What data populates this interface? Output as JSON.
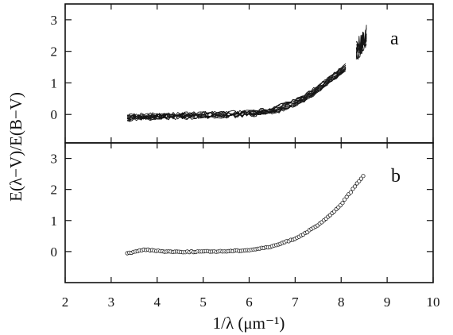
{
  "chart_data": {
    "type": "line",
    "xlabel": "1/λ (μm⁻¹)",
    "ylabel": "E(λ−V)/E(B−V)",
    "xlim": [
      2,
      10
    ],
    "x_ticks": [
      "2",
      "3",
      "4",
      "5",
      "6",
      "7",
      "8",
      "9",
      "10"
    ],
    "grid": false,
    "panels": [
      {
        "label": "a",
        "ylim": [
          -0.9,
          3.5
        ],
        "y_ticks": [
          "0",
          "1",
          "2",
          "3"
        ],
        "curves": 12,
        "x": [
          3.35,
          3.5,
          4.0,
          4.5,
          5.0,
          5.5,
          6.0,
          6.5,
          7.0,
          7.25,
          7.5,
          7.75,
          8.0,
          8.1
        ],
        "y": [
          -0.12,
          -0.08,
          -0.05,
          -0.03,
          -0.02,
          0.0,
          0.03,
          0.12,
          0.38,
          0.58,
          0.82,
          1.1,
          1.38,
          1.5
        ],
        "far_uv_x": [
          8.33,
          8.55
        ],
        "far_uv_y": [
          2.0,
          2.5
        ]
      },
      {
        "label": "b",
        "ylim": [
          -1.0,
          3.5
        ],
        "y_ticks": [
          "0",
          "1",
          "2",
          "3"
        ],
        "x": [
          3.35,
          3.5,
          3.7,
          4.0,
          4.5,
          5.0,
          5.5,
          6.0,
          6.5,
          7.0,
          7.25,
          7.5,
          7.75,
          8.0,
          8.25,
          8.5
        ],
        "y": [
          -0.05,
          -0.02,
          0.07,
          0.02,
          -0.01,
          0.0,
          0.01,
          0.05,
          0.16,
          0.42,
          0.62,
          0.85,
          1.15,
          1.52,
          2.0,
          2.48
        ]
      }
    ]
  }
}
